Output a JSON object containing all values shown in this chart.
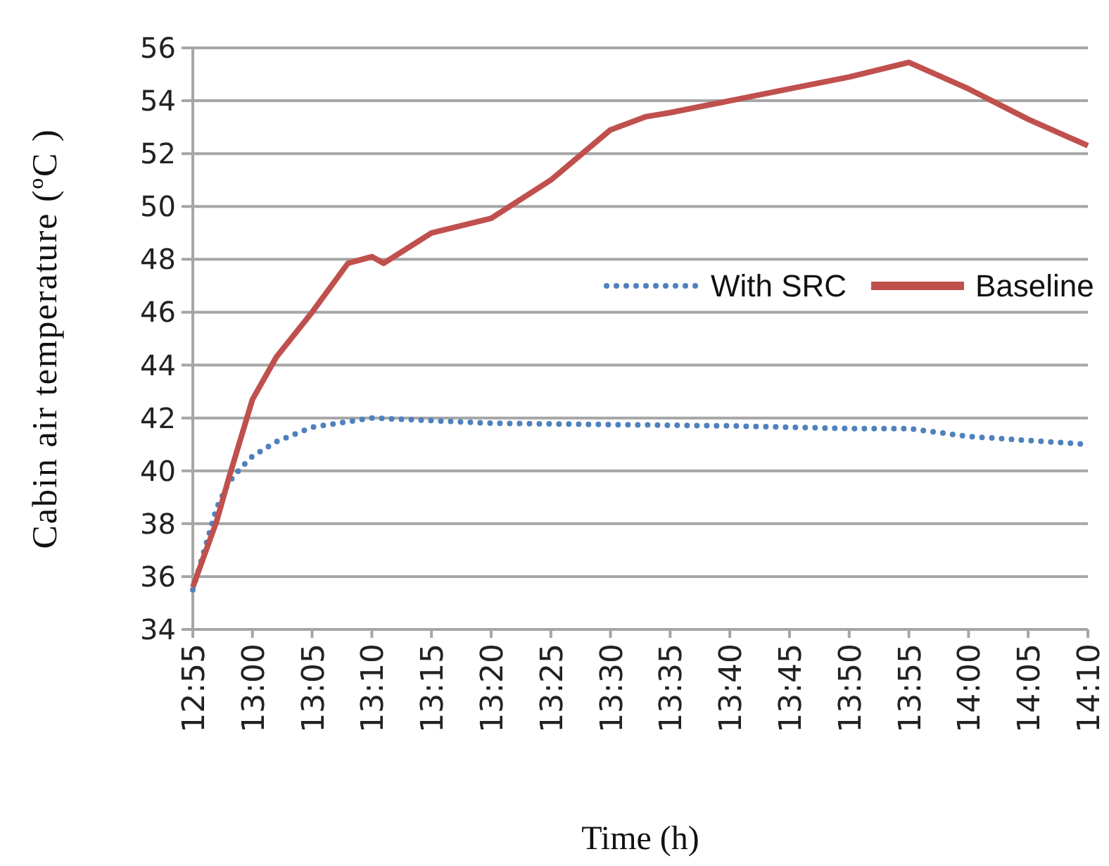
{
  "chart_data": {
    "type": "line",
    "xlabel": "Time (h)",
    "ylabel": "Cabin air temperature (ºC )",
    "xlim": [
      12.9167,
      14.1667
    ],
    "ylim": [
      34,
      56
    ],
    "xticks": [
      {
        "value": 12.9167,
        "label": "12:55"
      },
      {
        "value": 13,
        "label": "13:00"
      },
      {
        "value": 13.0833,
        "label": "13:05"
      },
      {
        "value": 13.1667,
        "label": "13:10"
      },
      {
        "value": 13.25,
        "label": "13:15"
      },
      {
        "value": 13.3333,
        "label": "13:20"
      },
      {
        "value": 13.4167,
        "label": "13:25"
      },
      {
        "value": 13.5,
        "label": "13:30"
      },
      {
        "value": 13.5833,
        "label": "13:35"
      },
      {
        "value": 13.6667,
        "label": "13:40"
      },
      {
        "value": 13.75,
        "label": "13:45"
      },
      {
        "value": 13.8333,
        "label": "13:50"
      },
      {
        "value": 13.9167,
        "label": "13:55"
      },
      {
        "value": 14,
        "label": "14:00"
      },
      {
        "value": 14.0833,
        "label": "14:05"
      },
      {
        "value": 14.1667,
        "label": "14:10"
      }
    ],
    "yticks": [
      34,
      36,
      38,
      40,
      42,
      44,
      46,
      48,
      50,
      52,
      54,
      56
    ],
    "grid": "y",
    "legend": "right",
    "marker": "none",
    "series": [
      {
        "name": "With SRC",
        "color": "#4f81bd",
        "line_style": "dotted",
        "x": [
          12.9167,
          12.95,
          12.9667,
          12.9833,
          13.0,
          13.0333,
          13.0833,
          13.1667,
          13.25,
          13.3333,
          13.5,
          13.6667,
          13.8333,
          13.9167,
          14.0,
          14.0833,
          14.1667
        ],
        "values": [
          35.5,
          38.6,
          39.55,
          40.1,
          40.55,
          41.1,
          41.65,
          42.0,
          41.9,
          41.8,
          41.75,
          41.7,
          41.6,
          41.6,
          41.3,
          41.15,
          41.0
        ]
      },
      {
        "name": "Baseline",
        "color": "#c0504d",
        "line_style": "solid",
        "x": [
          12.9167,
          12.95,
          12.9667,
          13.0,
          13.0333,
          13.0833,
          13.1333,
          13.1667,
          13.1833,
          13.25,
          13.3333,
          13.4167,
          13.5,
          13.55,
          13.5833,
          13.6667,
          13.75,
          13.8333,
          13.9167,
          14.0,
          14.0833,
          14.1667
        ],
        "values": [
          35.6,
          38.1,
          39.7,
          42.7,
          44.3,
          46.0,
          47.85,
          48.1,
          47.85,
          49.0,
          49.55,
          51.0,
          52.9,
          53.4,
          53.55,
          54.0,
          54.45,
          54.9,
          55.45,
          54.45,
          53.3,
          52.3
        ]
      }
    ]
  }
}
